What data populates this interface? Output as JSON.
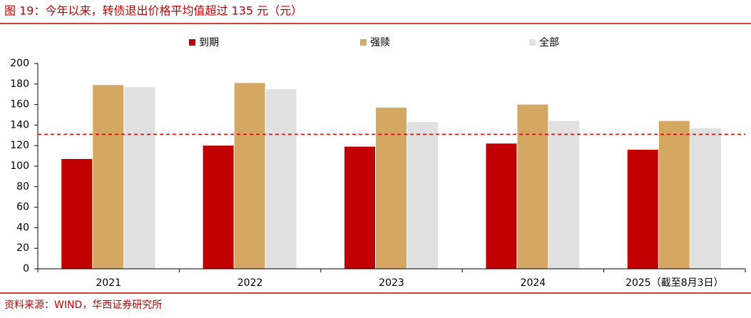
{
  "chart_data": {
    "type": "bar",
    "title": "图 19：今年以来，转债退出价格平均值超过 135 元（元）",
    "source": "资料来源：WIND，华西证券研究所",
    "categories": [
      "2021",
      "2022",
      "2023",
      "2024",
      "2025（截至8月3日）"
    ],
    "series": [
      {
        "name": "到期",
        "color": "#c00000",
        "values": [
          107,
          120,
          119,
          122,
          116
        ]
      },
      {
        "name": "强赎",
        "color": "#d4a862",
        "values": [
          179,
          181,
          157,
          160,
          144
        ]
      },
      {
        "name": "全部",
        "color": "#e0e0e0",
        "values": [
          177,
          175,
          143,
          144,
          137
        ]
      }
    ],
    "reference_line": 131,
    "reference_color": "#e00000",
    "ylim": [
      0,
      200
    ],
    "yticks": [
      0,
      20,
      40,
      60,
      80,
      100,
      120,
      140,
      160,
      180,
      200
    ]
  }
}
